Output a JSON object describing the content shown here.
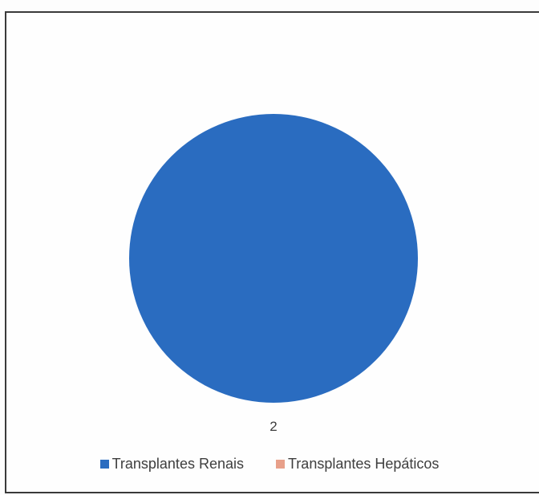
{
  "chart_data": {
    "type": "pie",
    "categories": [
      "Transplantes Renais",
      "Transplantes Hepáticos"
    ],
    "values": [
      2,
      0
    ],
    "data_labels": [
      "2",
      ""
    ],
    "colors": [
      "#2a6cc0",
      "#e8a08a"
    ],
    "title": "",
    "legend_position": "bottom"
  }
}
